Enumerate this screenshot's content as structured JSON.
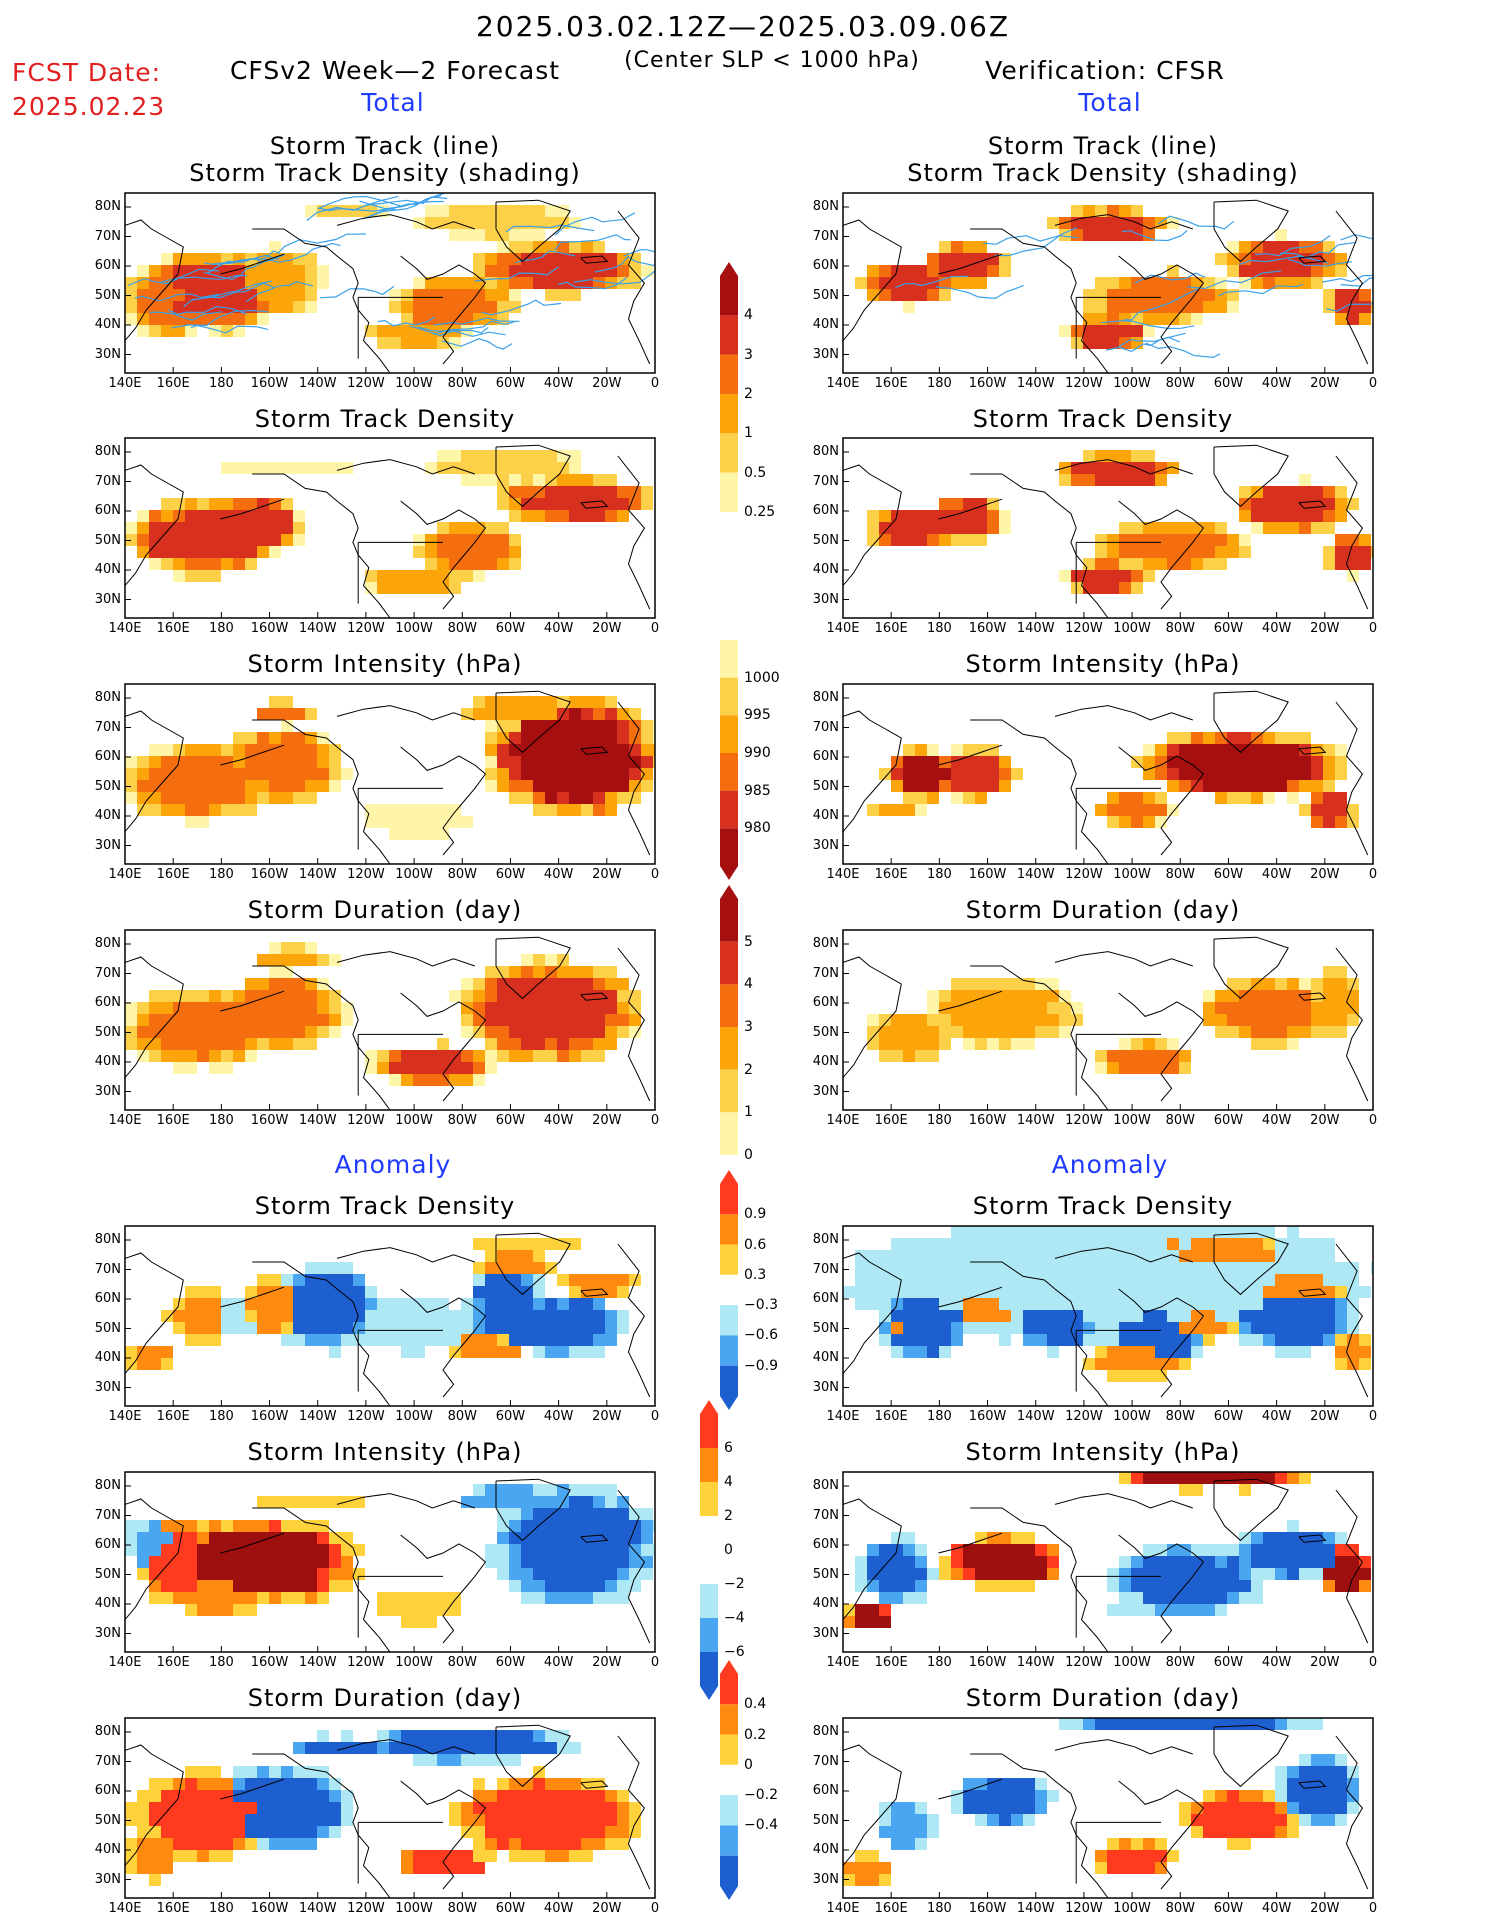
{
  "header": {
    "period": "2025.03.02.12Z—2025.03.09.06Z",
    "criterion": "(Center SLP < 1000 hPa)",
    "fcst_label": "FCST Date:",
    "fcst_date": "2025.02.23",
    "left_title": "CFSv2 Week—2 Forecast",
    "right_title": "Verification: CFSR"
  },
  "sections": {
    "total": "Total",
    "anomaly": "Anomaly"
  },
  "axes": {
    "lat_labels": [
      "80N",
      "70N",
      "60N",
      "50N",
      "40N",
      "30N"
    ],
    "lon_labels": [
      "140E",
      "160E",
      "180",
      "160W",
      "140W",
      "120W",
      "100W",
      "80W",
      "60W",
      "40W",
      "20W",
      "0"
    ]
  },
  "rows": [
    {
      "title_line1": "Storm Track (line)",
      "title_line2": "Storm Track Density (shading)",
      "scheme": "total"
    },
    {
      "title_line1": "Storm Track Density",
      "title_line2": "",
      "scheme": "total"
    },
    {
      "title_line1": "Storm Intensity (hPa)",
      "title_line2": "",
      "scheme": "intensity"
    },
    {
      "title_line1": "Storm Duration (day)",
      "title_line2": "",
      "scheme": "total"
    },
    {
      "title_line1": "Storm Track Density",
      "title_line2": "",
      "scheme": "anom"
    },
    {
      "title_line1": "Storm Intensity (hPa)",
      "title_line2": "",
      "scheme": "anomI"
    },
    {
      "title_line1": "Storm Duration (day)",
      "title_line2": "",
      "scheme": "anom"
    }
  ],
  "colorbars": [
    {
      "labels": [
        "4",
        "3",
        "2",
        "1",
        "0.5",
        "0.25"
      ],
      "colors": [
        "#a50f0f",
        "#d7301f",
        "#f46d0f",
        "#fca50a",
        "#fdd049",
        "#fff5a8"
      ],
      "ends": "top"
    },
    {
      "labels": [
        "1000",
        "995",
        "990",
        "985",
        "980"
      ],
      "colors": [
        "#fff5a8",
        "#fdd049",
        "#fca50a",
        "#f46d0f",
        "#d7301f",
        "#a50f0f"
      ],
      "ends": "bottom"
    },
    {
      "labels": [
        "5",
        "4",
        "3",
        "2",
        "1",
        "0"
      ],
      "colors": [
        "#a50f0f",
        "#d7301f",
        "#f46d0f",
        "#fca50a",
        "#fdd049",
        "#fff5a8"
      ],
      "ends": "top"
    },
    {
      "labels": [
        "0.9",
        "0.6",
        "0.3",
        "−0.3",
        "−0.6",
        "−0.9"
      ],
      "colors": [
        "#ff3b1f",
        "#ff8a10",
        "#ffd23c",
        "#ffffff",
        "#aee8f5",
        "#4aa6f0",
        "#1e5fd0"
      ],
      "ends": "both"
    },
    {
      "labels": [
        "6",
        "4",
        "2",
        "0",
        "−2",
        "−4",
        "−6"
      ],
      "colors": [
        "#ff3b1f",
        "#ff8a10",
        "#ffd23c",
        "#ffffff",
        "#ffffff",
        "#aee8f5",
        "#4aa6f0",
        "#1e5fd0"
      ],
      "ends": "both"
    },
    {
      "labels": [
        "0.4",
        "0.2",
        "0",
        "−0.2",
        "−0.4"
      ],
      "colors": [
        "#ff3b1f",
        "#ff8a10",
        "#ffd23c",
        "#ffffff",
        "#aee8f5",
        "#4aa6f0",
        "#1e5fd0"
      ],
      "ends": "both"
    }
  ],
  "palette": {
    "total": [
      "#fff5a8",
      "#fdd049",
      "#fca50a",
      "#f46d0f",
      "#d7301f",
      "#a50f0f"
    ],
    "intensity": [
      "#fff5a8",
      "#fdd049",
      "#fca50a",
      "#f46d0f",
      "#d7301f",
      "#a50f0f"
    ],
    "anom_pos": [
      "#ffd23c",
      "#ff8a10",
      "#ff3b1f",
      "#9e0f0f"
    ],
    "anom_neg": [
      "#aee8f5",
      "#4aa6f0",
      "#1e5fd0"
    ],
    "track_line": "#3aa0e8"
  }
}
